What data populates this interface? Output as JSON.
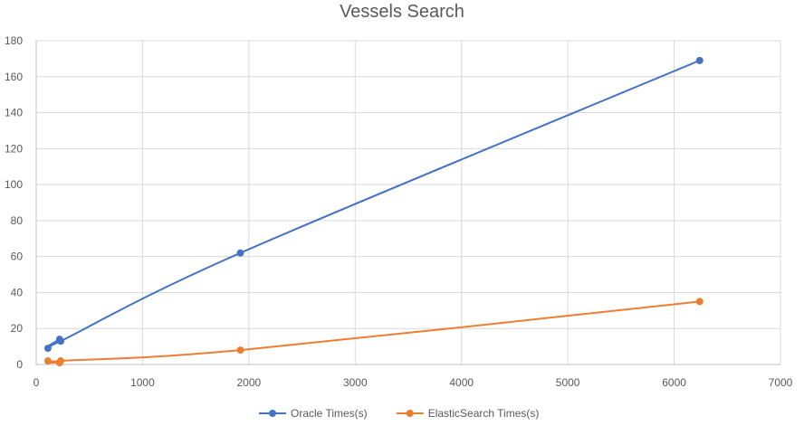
{
  "chart_data": {
    "type": "scatter",
    "title": "Vessels Search",
    "xlabel": "",
    "ylabel": "",
    "xlim": [
      0,
      7000
    ],
    "ylim": [
      0,
      180
    ],
    "xticks": [
      0,
      1000,
      2000,
      3000,
      4000,
      5000,
      6000,
      7000
    ],
    "yticks": [
      0,
      20,
      40,
      60,
      80,
      100,
      120,
      140,
      160,
      180
    ],
    "grid": true,
    "legend": "bottom",
    "lines": "smooth",
    "series": [
      {
        "name": "Oracle Times(s)",
        "color": "#4472c4",
        "points": [
          [
            110,
            9
          ],
          [
            220,
            14
          ],
          [
            230,
            13
          ],
          [
            1920,
            62
          ],
          [
            6240,
            169
          ]
        ]
      },
      {
        "name": "ElasticSearch Times(s)",
        "color": "#ed7d31",
        "points": [
          [
            110,
            2
          ],
          [
            220,
            1
          ],
          [
            230,
            2
          ],
          [
            1920,
            8
          ],
          [
            6240,
            35
          ]
        ]
      }
    ]
  }
}
